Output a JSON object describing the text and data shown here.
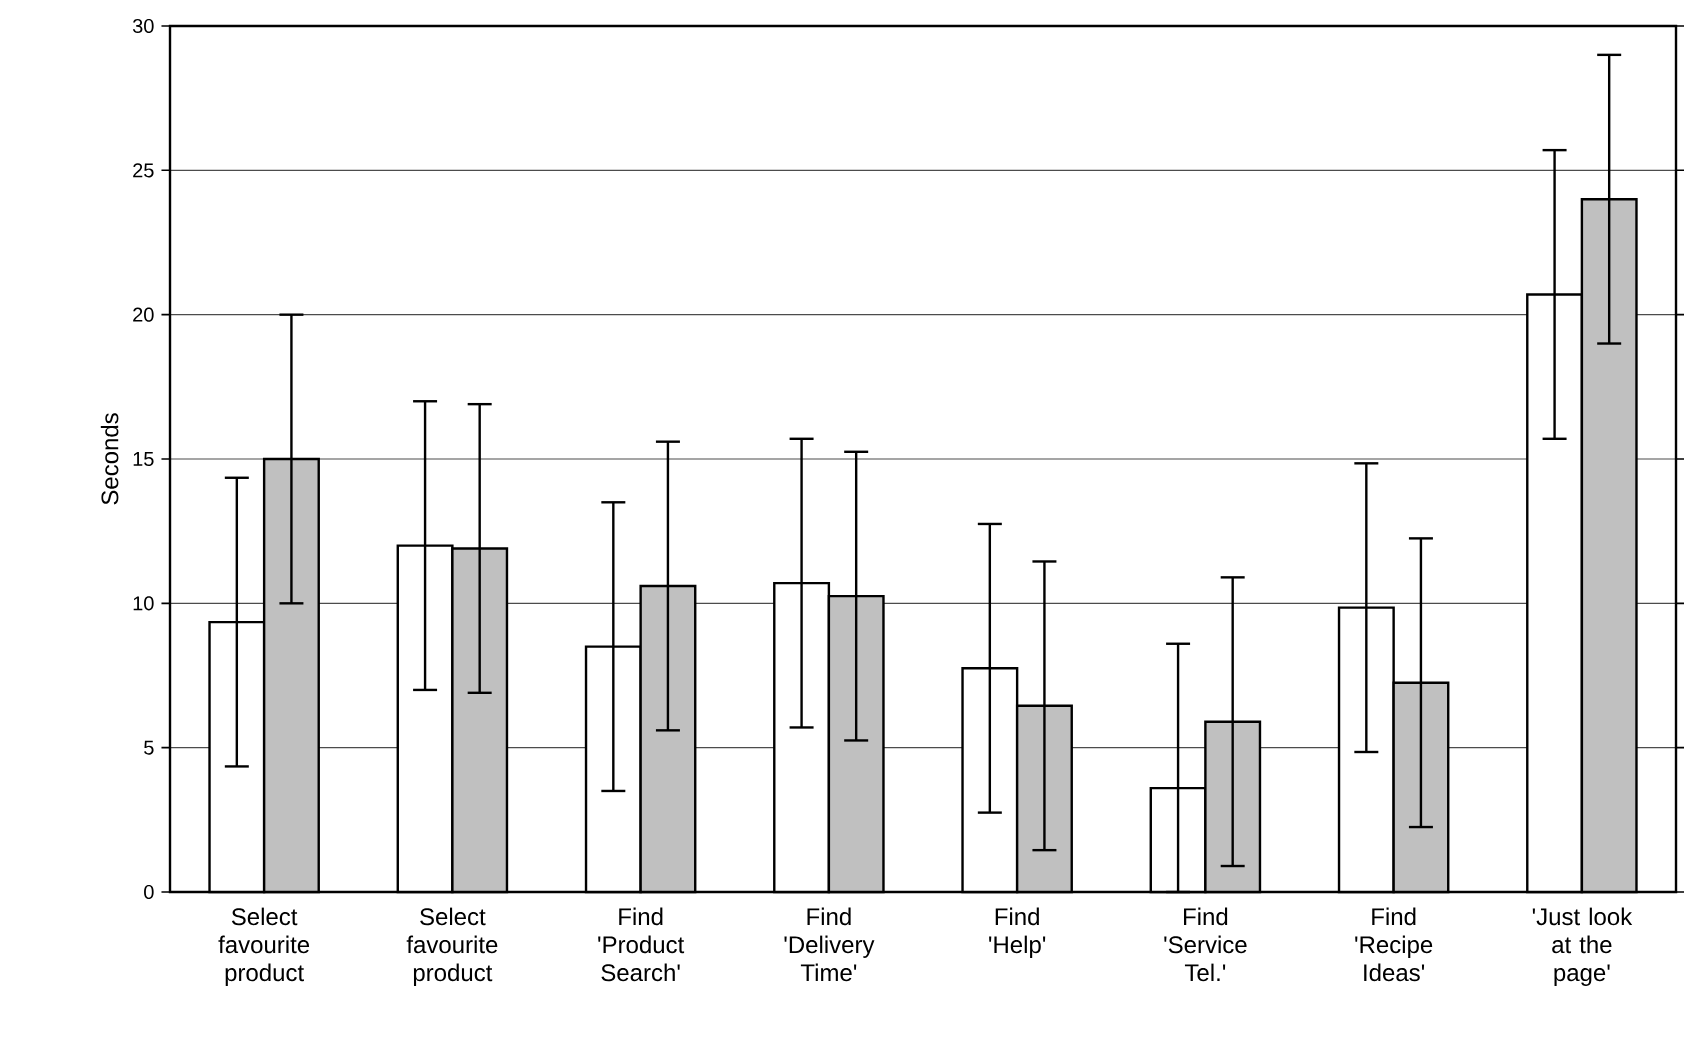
{
  "chart_data": {
    "type": "bar",
    "ylabel": "Seconds",
    "categories": [
      "Select favourite product",
      "Select favourite product",
      "Find 'Product Search'",
      "Find 'Delivery Time'",
      "Find 'Help'",
      "Find 'Service Tel.'",
      "Find 'Recipe Ideas'",
      "'Just look at the page'"
    ],
    "series": [
      {
        "color": "#ffffff",
        "values": [
          9.35,
          12.0,
          8.5,
          10.7,
          7.75,
          3.6,
          9.85,
          20.7
        ],
        "errors": [
          5,
          5,
          5,
          5,
          5,
          [
            0,
            8.6
          ],
          5,
          5
        ]
      },
      {
        "color": "#c0c0c0",
        "values": [
          15.0,
          11.9,
          10.6,
          10.25,
          6.45,
          5.9,
          7.25,
          24.0
        ],
        "errors": [
          5,
          5,
          5,
          5,
          5,
          5,
          5,
          5
        ]
      }
    ],
    "ylim": [
      0,
      30
    ],
    "yticks": [
      0,
      5,
      10,
      15,
      20,
      25,
      30
    ],
    "grid": "y"
  }
}
